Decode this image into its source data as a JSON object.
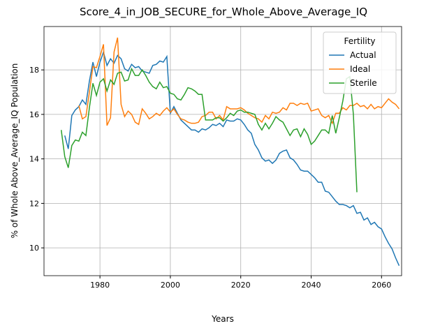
{
  "chart_data": {
    "type": "line",
    "title": "Score_4_in_JOB_SECURE_for_Whole_Above_Average_IQ",
    "xlabel": "Years",
    "ylabel": "% of Whole Above_Average_IQ Population",
    "legend_title": "Fertility",
    "legend": "upper right",
    "grid": true,
    "xlim": [
      1964.1,
      2065.7
    ],
    "xticks": [
      1980,
      2000,
      2020,
      2040,
      2060
    ],
    "ylim": [
      8.75,
      19.95
    ],
    "yticks": [
      10,
      12,
      14,
      16,
      18
    ],
    "x": [
      1969,
      1970,
      1971,
      1972,
      1973,
      1974,
      1975,
      1976,
      1977,
      1978,
      1979,
      1980,
      1981,
      1982,
      1983,
      1984,
      1985,
      1986,
      1987,
      1988,
      1989,
      1990,
      1991,
      1992,
      1993,
      1994,
      1995,
      1996,
      1997,
      1998,
      1999,
      2000,
      2001,
      2002,
      2003,
      2004,
      2005,
      2006,
      2007,
      2008,
      2009,
      2010,
      2011,
      2012,
      2013,
      2014,
      2015,
      2016,
      2017,
      2018,
      2019,
      2020,
      2021,
      2022,
      2023,
      2024,
      2025,
      2026,
      2027,
      2028,
      2029,
      2030,
      2031,
      2032,
      2033,
      2034,
      2035,
      2036,
      2037,
      2038,
      2039,
      2040,
      2041,
      2042,
      2043,
      2044,
      2045,
      2046,
      2047,
      2048,
      2049,
      2050,
      2051,
      2052,
      2053,
      2054,
      2055,
      2056,
      2057,
      2058,
      2059,
      2060,
      2061,
      2062,
      2063,
      2064,
      2065
    ],
    "series": [
      {
        "name": "Actual",
        "color": "#1f77b4",
        "values": [
          null,
          15.05,
          14.45,
          15.95,
          16.2,
          16.35,
          16.65,
          16.45,
          17.5,
          18.35,
          17.7,
          18.35,
          18.8,
          18.2,
          18.5,
          18.3,
          18.65,
          18.5,
          18.05,
          17.95,
          18.25,
          18.1,
          18.15,
          17.95,
          17.9,
          17.85,
          18.2,
          18.25,
          18.4,
          18.35,
          18.6,
          16.05,
          16.35,
          16.05,
          15.75,
          15.6,
          15.45,
          15.3,
          15.3,
          15.2,
          15.35,
          15.3,
          15.4,
          15.55,
          15.5,
          15.6,
          15.45,
          15.75,
          15.7,
          15.7,
          15.8,
          15.75,
          15.55,
          15.3,
          15.15,
          14.65,
          14.4,
          14.05,
          13.9,
          13.95,
          13.8,
          13.95,
          14.25,
          14.35,
          14.4,
          14.05,
          13.95,
          13.75,
          13.5,
          13.45,
          13.45,
          13.3,
          13.15,
          12.95,
          12.95,
          12.55,
          12.5,
          12.3,
          12.1,
          11.95,
          11.95,
          11.9,
          11.8,
          11.9,
          11.55,
          11.6,
          11.25,
          11.35,
          11.05,
          11.15,
          10.95,
          10.85,
          10.5,
          10.2,
          9.95,
          9.55,
          9.2
        ]
      },
      {
        "name": "Ideal",
        "color": "#ff7f0e",
        "values": [
          null,
          null,
          null,
          null,
          null,
          16.4,
          15.8,
          15.9,
          17.0,
          18.15,
          18.1,
          18.6,
          19.15,
          15.5,
          15.85,
          18.8,
          19.45,
          16.45,
          15.9,
          16.15,
          16.0,
          15.65,
          15.55,
          16.25,
          16.05,
          15.8,
          15.9,
          16.05,
          15.95,
          16.15,
          16.3,
          16.1,
          16.25,
          16.0,
          15.8,
          15.75,
          15.65,
          15.6,
          15.6,
          15.65,
          15.9,
          15.95,
          16.1,
          16.1,
          15.8,
          15.95,
          15.75,
          16.35,
          16.25,
          16.25,
          16.25,
          16.3,
          16.2,
          16.05,
          15.95,
          15.85,
          15.8,
          15.65,
          15.95,
          15.8,
          16.1,
          16.05,
          16.1,
          16.3,
          16.2,
          16.5,
          16.5,
          16.4,
          16.5,
          16.45,
          16.5,
          16.15,
          16.2,
          16.25,
          15.95,
          15.85,
          15.95,
          15.6,
          16.05,
          16.05,
          16.3,
          16.2,
          16.4,
          16.4,
          16.5,
          16.35,
          16.4,
          16.25,
          16.45,
          16.25,
          16.35,
          16.3,
          16.5,
          16.7,
          16.55,
          16.45,
          16.25
        ]
      },
      {
        "name": "Sterile",
        "color": "#2ca02c",
        "values": [
          15.3,
          14.1,
          13.6,
          14.6,
          14.85,
          14.8,
          15.2,
          15.05,
          16.3,
          17.4,
          16.85,
          17.45,
          17.6,
          17.05,
          17.55,
          17.35,
          17.85,
          17.9,
          17.5,
          17.55,
          18.05,
          17.75,
          17.75,
          18.0,
          17.75,
          17.45,
          17.25,
          17.15,
          17.45,
          17.2,
          17.25,
          16.95,
          16.9,
          16.7,
          16.65,
          16.9,
          17.2,
          17.15,
          17.05,
          16.9,
          16.9,
          15.75,
          15.75,
          15.75,
          15.85,
          15.85,
          15.7,
          15.85,
          16.05,
          15.95,
          16.15,
          16.2,
          16.1,
          16.1,
          16.05,
          16.0,
          15.55,
          15.3,
          15.6,
          15.35,
          15.6,
          15.9,
          15.75,
          15.65,
          15.35,
          15.05,
          15.3,
          15.35,
          15.0,
          15.35,
          15.1,
          14.65,
          14.8,
          15.05,
          15.3,
          15.3,
          15.15,
          15.95,
          15.15,
          15.85,
          16.6,
          17.6,
          17.7,
          16.0,
          12.5,
          null,
          null,
          null,
          null,
          null,
          null,
          null,
          null,
          null,
          null,
          null,
          null
        ]
      }
    ]
  }
}
